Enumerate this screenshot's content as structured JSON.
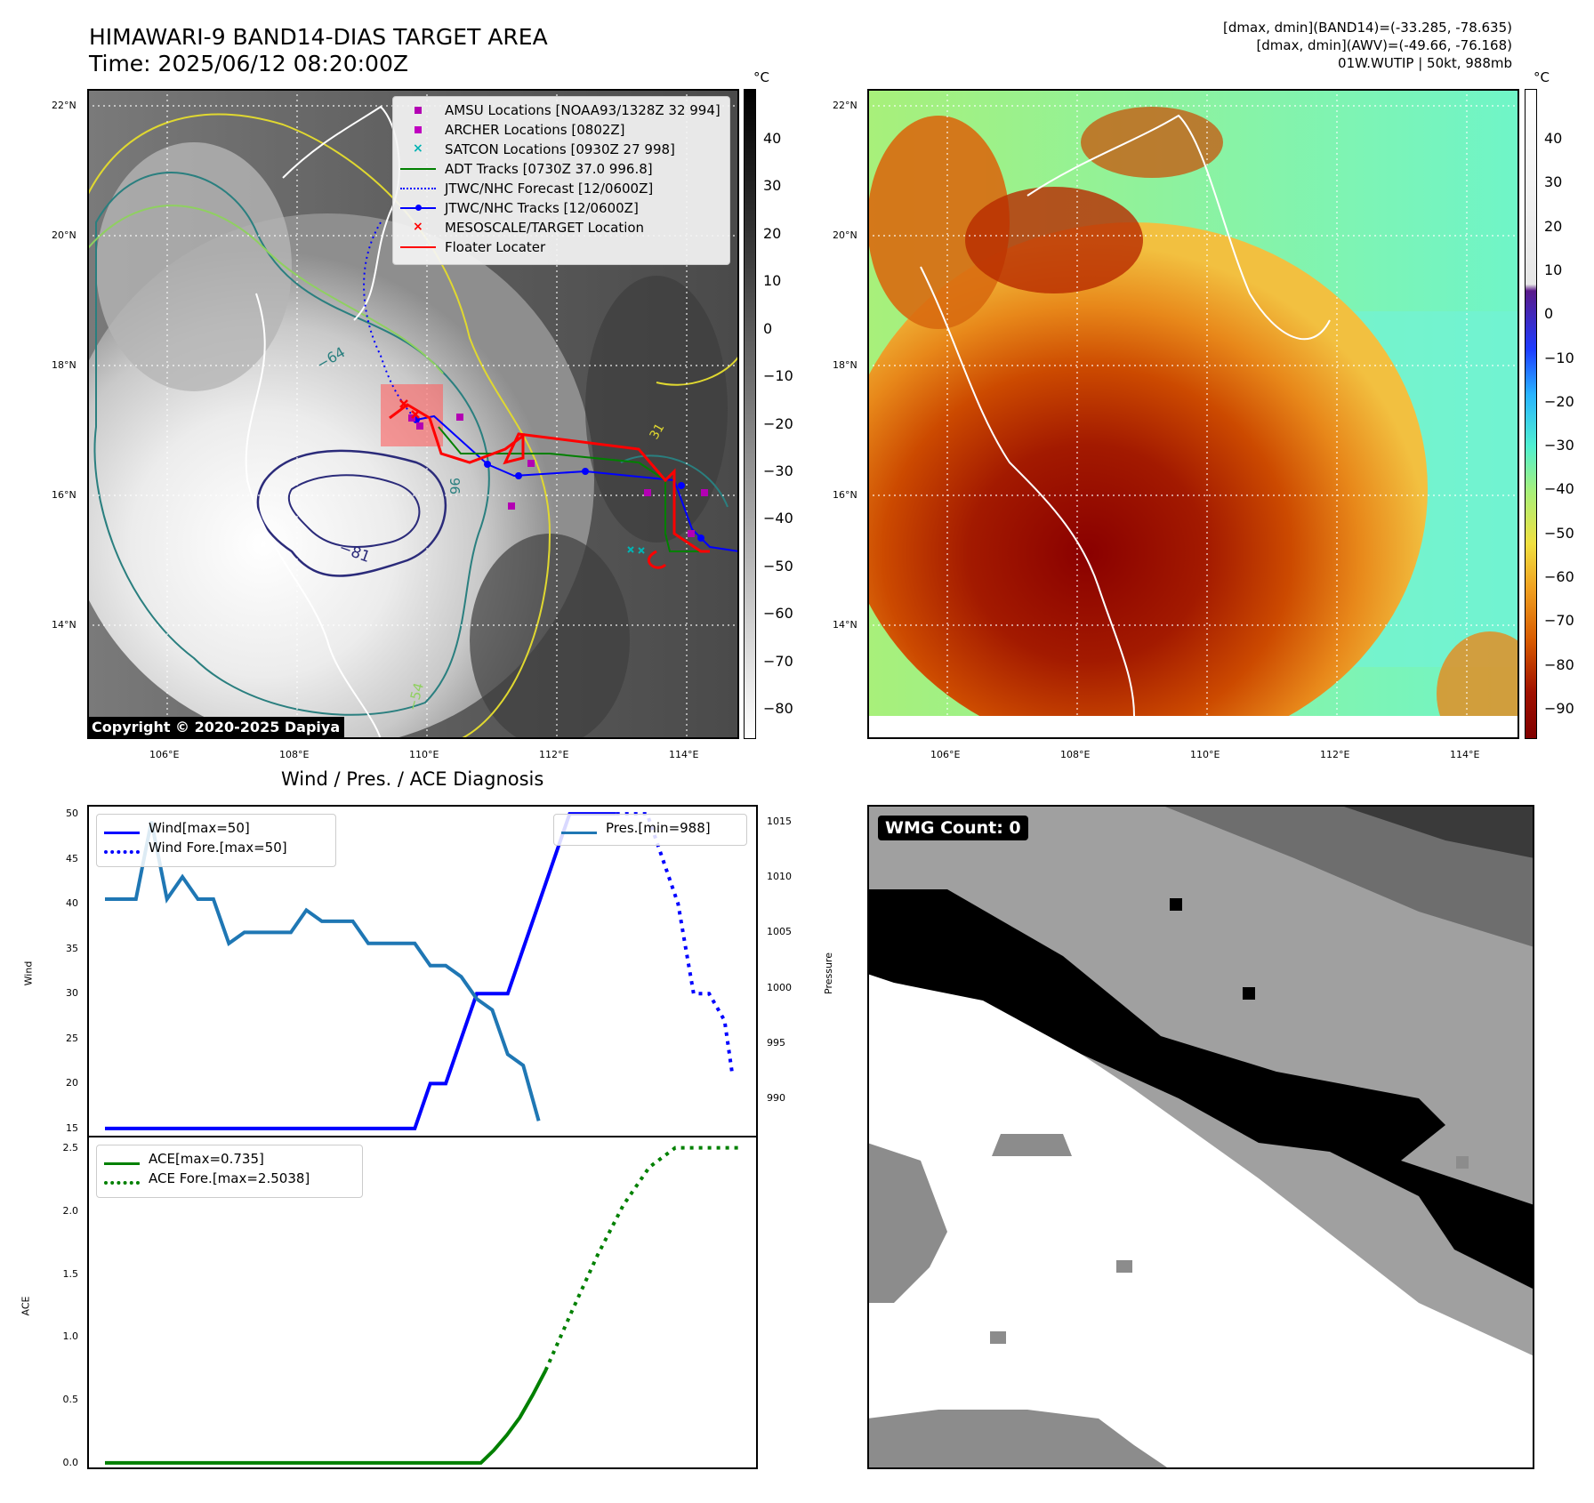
{
  "header": {
    "title_line1": "HIMAWARI-9 BAND14-DIAS TARGET AREA",
    "title_line2": "Time: 2025/06/12 08:20:00Z",
    "info_line1": "[dmax, dmin](BAND14)=(-33.285, -78.635)",
    "info_line2": "[dmax, dmin](AWV)=(-49.66, -76.168)",
    "info_line3": "01W.WUTIP | 50kt, 988mb"
  },
  "map_left": {
    "lat_ticks": [
      "22°N",
      "20°N",
      "18°N",
      "16°N",
      "14°N"
    ],
    "lon_ticks": [
      "106°E",
      "108°E",
      "110°E",
      "112°E",
      "114°E"
    ],
    "colorbar_unit": "°C",
    "colorbar_ticks": [
      "40",
      "30",
      "20",
      "10",
      "0",
      "−10",
      "−20",
      "−30",
      "−40",
      "−50",
      "−60",
      "−70",
      "−80"
    ],
    "contour_labels": [
      "−64",
      "−81",
      "−54",
      "96",
      "31"
    ],
    "copyright": "Copyright © 2020-2025 Dapiya",
    "legend": [
      {
        "label": "AMSU Locations [NOAA93/1328Z 32 994]",
        "color": "#b300b3",
        "marker": "square"
      },
      {
        "label": "ARCHER Locations [0802Z]",
        "color": "#c000c0",
        "marker": "square"
      },
      {
        "label": "SATCON Locations [0930Z 27 998]",
        "color": "#00b3b3",
        "marker": "x"
      },
      {
        "label": "ADT Tracks [0730Z 37.0 996.8]",
        "color": "#008000",
        "marker": "line"
      },
      {
        "label": "JTWC/NHC Forecast [12/0600Z]",
        "color": "#0000ff",
        "marker": "dotted"
      },
      {
        "label": "JTWC/NHC Tracks [12/0600Z]",
        "color": "#0000ff",
        "marker": "line-dot"
      },
      {
        "label": "MESOSCALE/TARGET Location",
        "color": "#ff0000",
        "marker": "x"
      },
      {
        "label": "Floater Locater",
        "color": "#ff0000",
        "marker": "line"
      }
    ]
  },
  "map_right": {
    "lat_ticks": [
      "22°N",
      "20°N",
      "18°N",
      "16°N",
      "14°N"
    ],
    "lon_ticks": [
      "106°E",
      "108°E",
      "110°E",
      "112°E",
      "114°E"
    ],
    "colorbar_unit": "°C",
    "colorbar_ticks": [
      "40",
      "30",
      "20",
      "10",
      "0",
      "−10",
      "−20",
      "−30",
      "−40",
      "−50",
      "−60",
      "−70",
      "−80",
      "−90"
    ]
  },
  "diagnosis": {
    "title": "Wind / Pres. / ACE Diagnosis",
    "wind_ylabel": "Wind",
    "pres_ylabel": "Pressure",
    "ace_ylabel": "ACE",
    "wind_legend": [
      "Wind[max=50]",
      "Wind Fore.[max=50]"
    ],
    "pres_legend": "Pres.[min=988]",
    "ace_legend": [
      "ACE[max=0.735]",
      "ACE Fore.[max=2.5038]"
    ]
  },
  "wmg": {
    "label": "WMG Count: 0"
  },
  "chart_data": [
    {
      "type": "line",
      "name": "wind",
      "ylim": [
        14,
        51
      ],
      "yticks": [
        15,
        20,
        25,
        30,
        35,
        40,
        45,
        50
      ],
      "series": [
        {
          "name": "Wind[max=50]",
          "color": "#0000ff",
          "style": "solid",
          "x": [
            0,
            20,
            21,
            22,
            23,
            24,
            25,
            26,
            27,
            28,
            29,
            30,
            31,
            32,
            33
          ],
          "y": [
            15,
            15,
            20,
            20,
            25,
            30,
            30,
            30,
            35,
            40,
            45,
            50,
            50,
            50,
            50
          ]
        },
        {
          "name": "Wind Fore.[max=50]",
          "color": "#0000ff",
          "style": "dotted",
          "x": [
            33,
            34,
            35,
            36,
            37,
            37.5,
            38,
            39,
            40,
            40.5
          ],
          "y": [
            50,
            50,
            50,
            45,
            40,
            35,
            30,
            30,
            27,
            21
          ]
        }
      ]
    },
    {
      "type": "line",
      "name": "pressure",
      "ylim": [
        986.5,
        1016.5
      ],
      "yticks": [
        990,
        995,
        1000,
        1005,
        1010,
        1015
      ],
      "series": [
        {
          "name": "Pres.[min=988]",
          "color": "#1f77b4",
          "style": "solid",
          "x": [
            0,
            2,
            3,
            4,
            5,
            6,
            7,
            8,
            9,
            10,
            11,
            12,
            13,
            14,
            15,
            16,
            17,
            18,
            19,
            20,
            21,
            22,
            23,
            24,
            25,
            26,
            27,
            28
          ],
          "y": [
            1008,
            1008,
            1015,
            1008,
            1010,
            1008,
            1008,
            1004,
            1005,
            1005,
            1005,
            1005,
            1007,
            1006,
            1006,
            1006,
            1004,
            1004,
            1004,
            1004,
            1002,
            1002,
            1001,
            999,
            998,
            994,
            993,
            988
          ]
        }
      ]
    },
    {
      "type": "line",
      "name": "ace",
      "ylim": [
        -0.05,
        2.6
      ],
      "yticks": [
        0.0,
        0.5,
        1.0,
        1.5,
        2.0,
        2.5
      ],
      "series": [
        {
          "name": "ACE[max=0.735]",
          "color": "#008000",
          "style": "solid",
          "x": [
            0,
            29,
            30,
            31,
            32,
            33,
            34
          ],
          "y": [
            0,
            0,
            0.1,
            0.22,
            0.36,
            0.54,
            0.735
          ]
        },
        {
          "name": "ACE Fore.[max=2.5038]",
          "color": "#008000",
          "style": "dotted",
          "x": [
            34,
            36,
            38,
            40,
            42,
            44,
            46,
            47,
            49
          ],
          "y": [
            0.735,
            1.2,
            1.65,
            2.05,
            2.35,
            2.5038,
            2.5038,
            2.5038,
            2.5038
          ]
        }
      ]
    }
  ]
}
